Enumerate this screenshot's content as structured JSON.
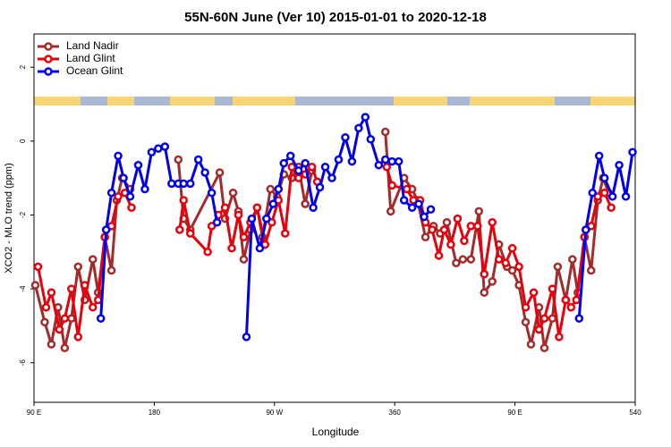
{
  "chart_data": {
    "type": "line",
    "title": "55N-60N June (Ver 10)   2015-01-01 to 2020-12-18",
    "x_label": "Longitude",
    "y_label": "XCO2 - MLO trend (ppm)",
    "xlim": [
      90,
      540
    ],
    "ylim": [
      -7.07,
      2.9
    ],
    "xticks": [
      {
        "value": 90,
        "label": "90 E"
      },
      180,
      {
        "value": 270,
        "label": "90 W"
      },
      360,
      {
        "value": 450,
        "label": "90 E"
      },
      540
    ],
    "yticks": [
      -6,
      -4,
      -2,
      0,
      2
    ],
    "legend": "top-left",
    "series": [
      {
        "name": "Land Nadir",
        "color": "#a52a2a",
        "x": [
          91,
          98,
          103,
          108,
          113,
          118,
          123,
          128,
          134,
          138,
          143,
          148,
          152,
          156,
          162,
          180,
          198,
          202,
          207,
          229,
          233,
          239,
          243,
          247,
          252,
          257,
          261,
          267,
          272,
          277,
          283,
          288,
          293,
          298,
          330,
          353,
          357,
          367,
          373,
          377,
          383,
          389,
          394,
          399,
          406,
          411,
          417,
          423,
          427,
          433,
          438,
          444,
          448,
          453,
          458,
          462,
          468,
          472,
          478,
          482,
          488,
          493,
          497,
          502,
          507,
          512,
          516,
          520
        ],
        "values": [
          -3.9,
          -4.9,
          -5.5,
          -4.5,
          -5.6,
          -4.8,
          -3.4,
          -4.3,
          -3.2,
          -4.1,
          -2.6,
          -3.5,
          -1.6,
          -1.0,
          -1.3,
          null,
          -0.5,
          -2.1,
          -2.4,
          -0.85,
          -2.1,
          -1.4,
          -1.9,
          -3.2,
          -2.4,
          -1.8,
          -2.6,
          -1.3,
          -1.5,
          -0.9,
          -1.0,
          -0.7,
          -1.7,
          -0.8,
          null,
          0.25,
          -1.9,
          -1.0,
          -1.3,
          -1.6,
          -2.6,
          -2.3,
          -2.5,
          -2.2,
          -3.3,
          -3.2,
          -3.2,
          -1.9,
          -4.1,
          -3.8,
          -2.8,
          -3.4,
          -3.5,
          -3.9,
          -4.9,
          -5.5,
          -4.5,
          -5.6,
          -4.8,
          -3.4,
          -4.3,
          -3.2,
          -4.1,
          -2.6,
          -3.5,
          -1.6,
          -1.0,
          -1.4
        ]
      },
      {
        "name": "Land Glint",
        "color": "#e8000b",
        "x": [
          93,
          99,
          103,
          109,
          113,
          118,
          123,
          128,
          134,
          138,
          143,
          148,
          153,
          158,
          163,
          180,
          199,
          202,
          207,
          220,
          223,
          228,
          233,
          238,
          243,
          247,
          252,
          257,
          263,
          268,
          273,
          278,
          283,
          288,
          293,
          298,
          302,
          330,
          354,
          358,
          369,
          374,
          379,
          383,
          388,
          393,
          397,
          402,
          407,
          412,
          417,
          422,
          427,
          433,
          438,
          443,
          448,
          453,
          458,
          464,
          468,
          472,
          478,
          483,
          488,
          492,
          496,
          502,
          507,
          512,
          517,
          522
        ],
        "values": [
          -3.4,
          -4.5,
          -4.1,
          -5.1,
          -4.8,
          -4.0,
          -5.3,
          -3.9,
          -4.5,
          -4.3,
          -2.6,
          -2.3,
          -1.5,
          -1.4,
          -1.8,
          null,
          -2.4,
          -1.6,
          -2.5,
          -3.0,
          -2.3,
          -2.0,
          -1.8,
          -2.9,
          -2.0,
          -2.6,
          -2.2,
          -1.8,
          -2.8,
          -2.2,
          -1.6,
          -2.5,
          -0.7,
          -1.0,
          -0.9,
          -0.7,
          -1.1,
          null,
          -0.7,
          -1.2,
          -1.3,
          -1.6,
          -1.6,
          -2.2,
          -2.4,
          -3.1,
          -2.4,
          -2.8,
          -2.1,
          -2.7,
          -2.3,
          -2.3,
          -3.6,
          -2.2,
          -3.2,
          -3.3,
          -2.9,
          -3.4,
          -4.5,
          -4.1,
          -5.1,
          -4.8,
          -4.0,
          -5.3,
          -4.3,
          -4.5,
          -4.3,
          -2.6,
          -2.3,
          -1.5,
          -1.4,
          -1.8
        ]
      },
      {
        "name": "Ocean Glint",
        "color": "#0000ee",
        "x": [
          140,
          144,
          148,
          153,
          157,
          162,
          168,
          173,
          178,
          183,
          188,
          193,
          198,
          202,
          207,
          213,
          218,
          223,
          227,
          238,
          249,
          253,
          259,
          264,
          269,
          273,
          277,
          282,
          288,
          293,
          299,
          304,
          308,
          313,
          318,
          323,
          328,
          333,
          338,
          342,
          348,
          353,
          358,
          363,
          367,
          373,
          378,
          382,
          387,
          440,
          498,
          503,
          508,
          513,
          517,
          523,
          528,
          533,
          538
        ],
        "values": [
          -4.8,
          -2.4,
          -1.4,
          -0.4,
          -1.0,
          -1.5,
          -0.65,
          -1.3,
          -0.3,
          -0.2,
          -0.15,
          -1.15,
          -1.15,
          -1.15,
          -1.15,
          -0.5,
          -0.85,
          -1.4,
          -2.2,
          null,
          -5.3,
          -2.1,
          -2.9,
          -2.1,
          -1.7,
          -1.3,
          -0.6,
          -0.4,
          -0.8,
          -0.6,
          -1.8,
          -1.25,
          -0.7,
          -1.0,
          -0.5,
          0.1,
          -0.55,
          0.35,
          0.65,
          0.05,
          -0.65,
          -0.5,
          -0.55,
          -0.55,
          -1.6,
          -1.8,
          -1.7,
          -2.05,
          -1.85,
          null,
          -4.8,
          -2.4,
          -1.4,
          -0.4,
          -1.0,
          -1.5,
          -0.65,
          -1.5,
          -0.3
        ]
      }
    ]
  }
}
